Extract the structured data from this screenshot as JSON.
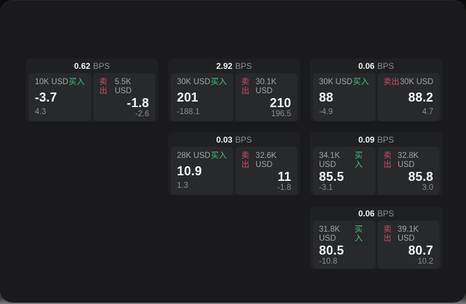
{
  "labels": {
    "bps_unit": "BPS",
    "buy": "买入",
    "sell": "卖出"
  },
  "colors": {
    "buy_green": "#3dc47c",
    "sell_red": "#cc4d68",
    "window_bg": "#1a1a1c",
    "card_bg": "#1f2022",
    "tile_bg": "#28292b",
    "value_white": "#f5f6f7",
    "muted_gray": "#8b8d90"
  },
  "cards": [
    {
      "bps": "0.62",
      "buy": {
        "size": "10K USD",
        "price": "-3.7",
        "delta": "4.3"
      },
      "sell": {
        "size": "5.5K USD",
        "price": "-1.8",
        "delta": "-2.6"
      }
    },
    {
      "bps": "2.92",
      "buy": {
        "size": "30K USD",
        "price": "201",
        "delta": "-188.1"
      },
      "sell": {
        "size": "30.1K USD",
        "price": "210",
        "delta": "196.5"
      }
    },
    {
      "bps": "0.06",
      "buy": {
        "size": "30K USD",
        "price": "88",
        "delta": "-4.9"
      },
      "sell": {
        "size": "30K USD",
        "price": "88.2",
        "delta": "4.7"
      }
    },
    {
      "bps": "0.03",
      "buy": {
        "size": "28K USD",
        "price": "10.9",
        "delta": "1.3"
      },
      "sell": {
        "size": "32.6K USD",
        "price": "11",
        "delta": "-1.8"
      }
    },
    {
      "bps": "0.09",
      "buy": {
        "size": "34.1K USD",
        "price": "85.5",
        "delta": "-3.1"
      },
      "sell": {
        "size": "32.8K USD",
        "price": "85.8",
        "delta": "3.0"
      }
    },
    {
      "bps": "0.06",
      "buy": {
        "size": "31.8K USD",
        "price": "80.5",
        "delta": "-10.8"
      },
      "sell": {
        "size": "39.1K USD",
        "price": "80.7",
        "delta": "10.2"
      }
    }
  ]
}
